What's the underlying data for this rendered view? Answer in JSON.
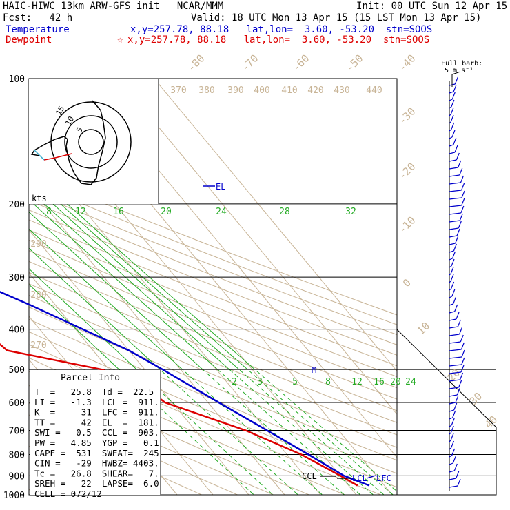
{
  "header": {
    "title": "HAIC-HIWC 13km ARW-GFS init   NCAR/MMM",
    "init": "Init: 00 UTC Sun 12 Apr 15",
    "fcst": "Fcst:   42 h",
    "valid": "Valid: 18 UTC Mon 13 Apr 15 (15 LST Mon 13 Apr 15)",
    "temp_label": "Temperature",
    "temp_info": "x,y=257.78, 88.18   lat,lon=  3.60, -53.20  stn=SOOS",
    "dew_label": "Dewpoint",
    "dew_star": "☆",
    "dew_info": "x,y=257.78, 88.18   lat,lon=  3.60, -53.20  stn=SOOS"
  },
  "colors": {
    "temperature": "#0000cc",
    "dewpoint": "#dd0000",
    "isotherm": "#c8b496",
    "mixing_ratio": "#22aa22",
    "black": "#000000"
  },
  "barb_legend": {
    "line1": "Full barb:",
    "line2": "5 m s⁻¹"
  },
  "hodograph": {
    "units": "kts",
    "ring_labels": [
      "5",
      "10",
      "15"
    ]
  },
  "parcel": {
    "title": "Parcel Info",
    "rows": [
      "T  =   25.8  Td =  22.5",
      "LI =   -1.3  LCL =  911.",
      "K  =     31  LFC =  911.",
      "TT =     42  EL  =  181.",
      "SWI =   0.5  CCL =  903.",
      "PW =   4.85  YGP =   0.1",
      "CAPE =  531  SWEAT=  245",
      "CIN =   -29  HWBZ= 4403.",
      "Tc =   26.8  SHEAR=   7.",
      "SREH =   22  LAPSE=  6.0",
      "CELL = 072/12"
    ]
  },
  "level_labels": {
    "el": "EL",
    "lcl": "LCL",
    "lfc": "LFC",
    "ccl": "CCL",
    "m": "M"
  },
  "chart_data": {
    "type": "line",
    "title": "Skew-T log-P sounding",
    "y_axis": {
      "label": "Pressure (hPa)",
      "ticks": [
        100,
        200,
        300,
        400,
        500,
        600,
        700,
        800,
        900,
        1000
      ],
      "scale": "log"
    },
    "isotherm_labels": [
      "-80",
      "-70",
      "-60",
      "-50",
      "-40",
      "-30",
      "-20",
      "-10",
      "0",
      "10",
      "20",
      "30",
      "40"
    ],
    "dry_adiabat_labels": [
      "370",
      "380",
      "390",
      "400",
      "410",
      "420",
      "430",
      "440",
      "290",
      "280",
      "270"
    ],
    "mixing_ratio_upper_labels": [
      "8",
      "12",
      "16",
      "20",
      "24",
      "28",
      "32"
    ],
    "mixing_ratio_lower_labels": [
      "2",
      "3",
      "5",
      "8",
      "12",
      "16",
      "20",
      "24"
    ],
    "series": [
      {
        "name": "Temperature",
        "color": "#0000cc",
        "points": [
          [
            100,
            -83
          ],
          [
            120,
            -77
          ],
          [
            150,
            -70
          ],
          [
            175,
            -66
          ],
          [
            200,
            -60
          ],
          [
            250,
            -49
          ],
          [
            300,
            -38.5
          ],
          [
            350,
            -27
          ],
          [
            400,
            -18
          ],
          [
            450,
            -10
          ],
          [
            500,
            -5
          ],
          [
            600,
            3
          ],
          [
            700,
            10
          ],
          [
            800,
            16
          ],
          [
            900,
            21
          ],
          [
            950,
            25.8
          ]
        ]
      },
      {
        "name": "Dewpoint",
        "color": "#dd0000",
        "points": [
          [
            100,
            -89
          ],
          [
            140,
            -90
          ],
          [
            170,
            -91
          ],
          [
            185,
            -86
          ],
          [
            200,
            -64
          ],
          [
            250,
            -62
          ],
          [
            300,
            -52
          ],
          [
            350,
            -54
          ],
          [
            400,
            -46
          ],
          [
            450,
            -44
          ],
          [
            500,
            -22
          ],
          [
            550,
            -14
          ],
          [
            600,
            -12
          ],
          [
            700,
            4
          ],
          [
            800,
            14
          ],
          [
            900,
            20
          ],
          [
            950,
            22.5
          ]
        ]
      }
    ],
    "wind_barbs": true,
    "grid": true
  }
}
